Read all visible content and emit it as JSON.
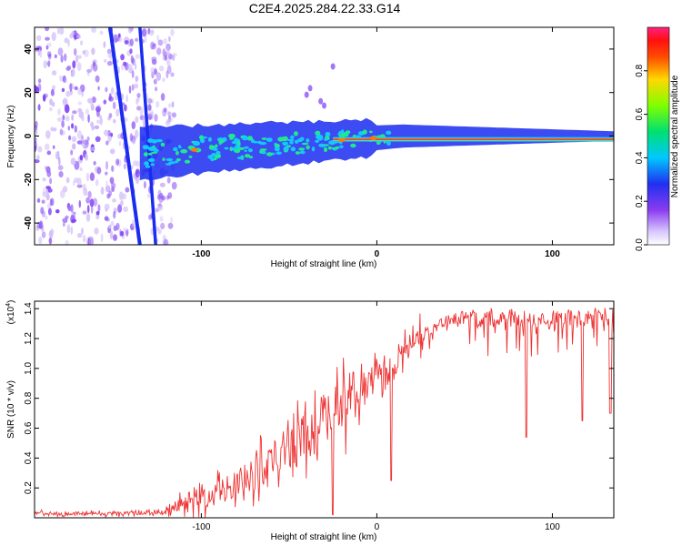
{
  "figure_title": "C2E4.2025.284.22.33.G14",
  "colors": {
    "line": "#ee3333",
    "spectrum_track": "#1a2cf0",
    "spectrum_band": "#14c8ff",
    "spectrum_core": "#e02020",
    "scatter": "#7a3cf5"
  },
  "chart_data": [
    {
      "type": "heatmap",
      "title": "C2E4.2025.284.22.33.G14",
      "xlabel": "Height of straight line (km)",
      "ylabel": "Frequency (Hz)",
      "xlim": [
        -195,
        135
      ],
      "ylim": [
        -50,
        50
      ],
      "x_ticks": [
        -100,
        0,
        100
      ],
      "x_tick_labels": [
        "-100",
        "0",
        "100"
      ],
      "y_ticks": [
        -40,
        -20,
        0,
        20,
        40
      ],
      "y_tick_labels": [
        "-40",
        "-20",
        "0",
        "20",
        "40"
      ],
      "colorbar": {
        "label": "Normalized spectral amplitude",
        "range": [
          0,
          1
        ],
        "ticks": [
          0.0,
          0.2,
          0.4,
          0.6,
          0.8
        ],
        "tick_labels": [
          "0.0",
          "0.2",
          "0.4",
          "0.6",
          "0.8"
        ]
      },
      "features": {
        "noise_region_x": [
          -195,
          -115
        ],
        "diagonal_track_1": {
          "x": [
            -152,
            -135
          ],
          "y": [
            50,
            -50
          ]
        },
        "diagonal_track_2": {
          "x": [
            -135,
            -126
          ],
          "y": [
            50,
            -50
          ]
        },
        "signal_band": {
          "x": [
            -135,
            135
          ],
          "y_center": [
            -10,
            -2
          ],
          "y_spread": [
            8,
            1
          ]
        },
        "scattered_points": [
          {
            "x": -40,
            "y": 19
          },
          {
            "x": -38,
            "y": 22
          },
          {
            "x": -32,
            "y": 16
          },
          {
            "x": -25,
            "y": 32
          },
          {
            "x": -30,
            "y": 14
          }
        ]
      }
    },
    {
      "type": "line",
      "xlabel": "Height of straight line (km)",
      "ylabel": "SNR (10 * v/v)",
      "scale_label": "(x10",
      "scale_exponent": "4",
      "xlim": [
        -195,
        135
      ],
      "ylim": [
        0,
        14500
      ],
      "x_ticks": [
        -100,
        0,
        100
      ],
      "x_tick_labels": [
        "-100",
        "0",
        "100"
      ],
      "y_ticks": [
        2000,
        4000,
        6000,
        8000,
        10000,
        12000,
        14000
      ],
      "y_tick_labels": [
        "0.2",
        "0.4",
        "0.6",
        "0.8",
        "1.0",
        "1.2",
        "1.4"
      ],
      "series": [
        {
          "name": "SNR",
          "x": [
            -195,
            -180,
            -165,
            -150,
            -135,
            -120,
            -110,
            -100,
            -90,
            -80,
            -70,
            -60,
            -50,
            -40,
            -30,
            -20,
            -10,
            0,
            10,
            20,
            30,
            40,
            50,
            60,
            70,
            80,
            90,
            100,
            110,
            120,
            135
          ],
          "base": [
            300,
            280,
            260,
            280,
            300,
            400,
            1000,
            1300,
            1700,
            2200,
            2900,
            3700,
            4600,
            5500,
            6500,
            7500,
            8300,
            9400,
            10300,
            11700,
            12900,
            13600,
            13900,
            14000,
            14100,
            14100,
            14000,
            14000,
            14000,
            14100,
            14100
          ],
          "spread": [
            250,
            250,
            250,
            250,
            250,
            400,
            1200,
            1500,
            1700,
            1900,
            2300,
            2700,
            3100,
            3500,
            3800,
            3800,
            2500,
            1800,
            1600,
            1600,
            1700,
            1500,
            2200,
            3200,
            3200,
            3400,
            3300,
            3000,
            3300,
            2600,
            2800
          ],
          "dips": [
            {
              "x": 8,
              "value": 2500
            },
            {
              "x": 85,
              "value": 5400
            },
            {
              "x": 117,
              "value": 6500
            },
            {
              "x": 133,
              "value": 7000
            },
            {
              "x": -25,
              "value": 200
            }
          ]
        }
      ]
    }
  ]
}
